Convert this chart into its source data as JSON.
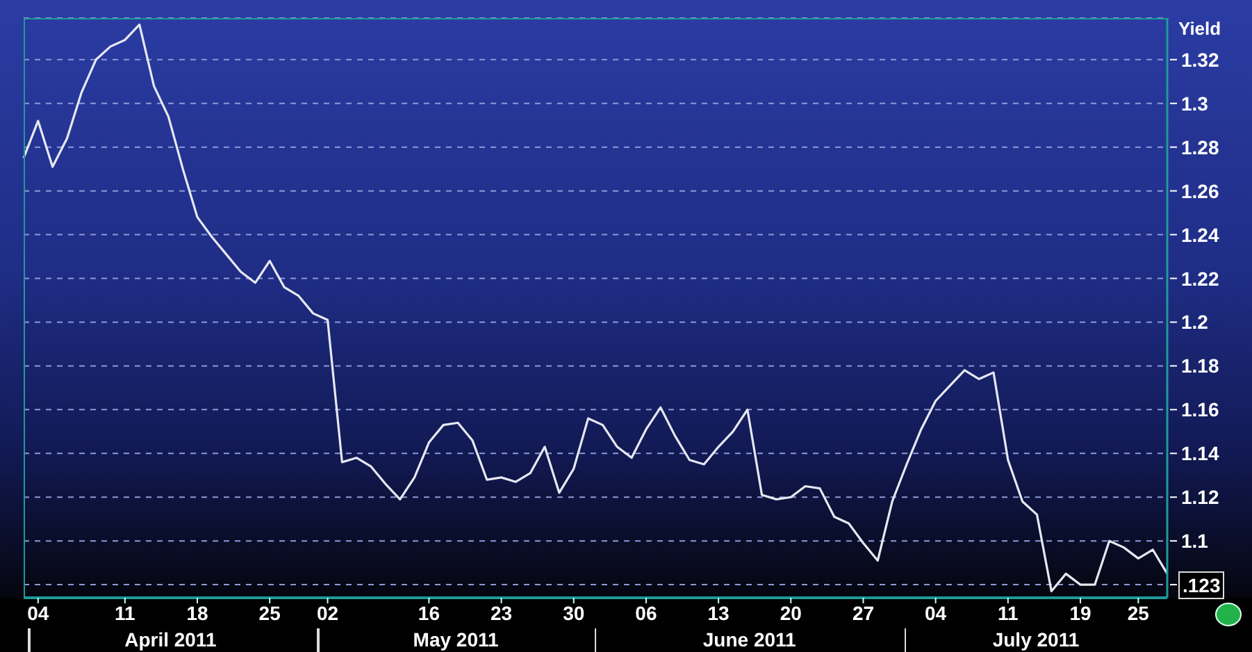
{
  "chart_data": {
    "type": "line",
    "ylabel": "Yield",
    "categories": [
      null,
      "04",
      null,
      null,
      null,
      null,
      null,
      "11",
      null,
      null,
      null,
      null,
      "18",
      null,
      null,
      null,
      null,
      "25",
      null,
      null,
      null,
      "02",
      null,
      null,
      null,
      null,
      null,
      null,
      "16",
      null,
      null,
      null,
      null,
      "23",
      null,
      null,
      null,
      null,
      "30",
      null,
      null,
      null,
      null,
      "06",
      null,
      null,
      null,
      null,
      "13",
      null,
      null,
      null,
      null,
      "20",
      null,
      null,
      null,
      null,
      "27",
      null,
      null,
      null,
      null,
      "04",
      null,
      null,
      null,
      null,
      "11",
      null,
      null,
      null,
      null,
      "19",
      null,
      null,
      null,
      "25",
      null,
      null
    ],
    "series": [
      {
        "color": "#e6e8f2",
        "values": [
          1.275,
          1.292,
          1.271,
          1.284,
          1.305,
          1.32,
          1.326,
          1.329,
          1.336,
          1.308,
          1.294,
          1.27,
          1.248,
          1.239,
          1.231,
          1.223,
          1.218,
          1.228,
          1.216,
          1.212,
          1.204,
          1.201,
          1.136,
          1.138,
          1.134,
          1.126,
          1.119,
          1.129,
          1.145,
          1.153,
          1.154,
          1.146,
          1.128,
          1.129,
          1.127,
          1.131,
          1.143,
          1.122,
          1.133,
          1.156,
          1.153,
          1.143,
          1.138,
          1.151,
          1.161,
          1.148,
          1.137,
          1.135,
          1.143,
          1.15,
          1.16,
          1.121,
          1.119,
          1.12,
          1.125,
          1.124,
          1.111,
          1.108,
          1.099,
          1.091,
          1.118,
          1.135,
          1.151,
          1.164,
          1.171,
          1.178,
          1.174,
          1.177,
          1.137,
          1.118,
          1.112,
          1.077,
          1.085,
          1.08,
          1.08,
          1.1,
          1.097,
          1.092,
          1.096,
          1.085
        ]
      }
    ],
    "ylim": [
      1.074,
      1.339
    ],
    "yticks": [
      {
        "value": 1.08,
        "label": null
      },
      1.1,
      1.12,
      1.14,
      1.16,
      1.18,
      1.2,
      1.22,
      1.24,
      1.26,
      1.28,
      1.3,
      1.32
    ],
    "grid": "y",
    "marker": "none",
    "line_style": "solid",
    "annotations": [
      "April 2011",
      "May 2011",
      "June 2011",
      "July 2011",
      ".123"
    ]
  }
}
